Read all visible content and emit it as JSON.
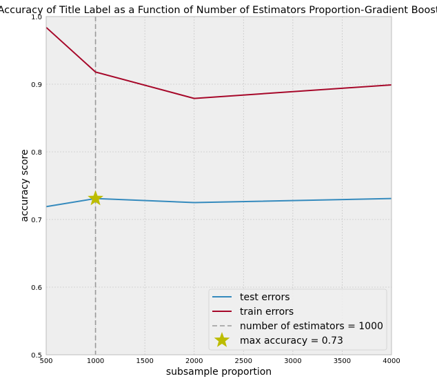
{
  "chart_data": {
    "type": "line",
    "title": "Accuracy of Title Label as a Function of Number of Estimators Proportion-Gradient Boost",
    "xlabel": "subsample proportion",
    "ylabel": "accuracy score",
    "xlim": [
      500,
      4000
    ],
    "ylim": [
      0.5,
      1.0
    ],
    "xticks": [
      500,
      1000,
      1500,
      2000,
      2500,
      3000,
      3500,
      4000
    ],
    "yticks": [
      0.5,
      0.6,
      0.7,
      0.8,
      0.9,
      1.0
    ],
    "xtick_labels": [
      "500",
      "1000",
      "1500",
      "2000",
      "2500",
      "3000",
      "3500",
      "4000"
    ],
    "ytick_labels": [
      "0.5",
      "0.6",
      "0.7",
      "0.8",
      "0.9",
      "1.0"
    ],
    "grid": true,
    "legend_placement": "bottom-right",
    "x": [
      500,
      1000,
      2000,
      4000
    ],
    "series": [
      {
        "name": "test errors",
        "values": [
          0.719,
          0.731,
          0.725,
          0.731
        ],
        "color": "#348abd"
      },
      {
        "name": "train errors",
        "values": [
          0.984,
          0.918,
          0.879,
          0.899
        ],
        "color": "#a60628"
      }
    ],
    "vline": {
      "label": "number of estimators = 1000",
      "x": 1000,
      "color": "#999999"
    },
    "max_point": {
      "label": "max accuracy = 0.73",
      "x": 1000,
      "y": 0.731,
      "color": "#bcbc00"
    },
    "colors": {
      "plot_background": "#eeeeee",
      "grid": "#c8c8c8",
      "axes_edge": "#bcbcbc"
    }
  }
}
